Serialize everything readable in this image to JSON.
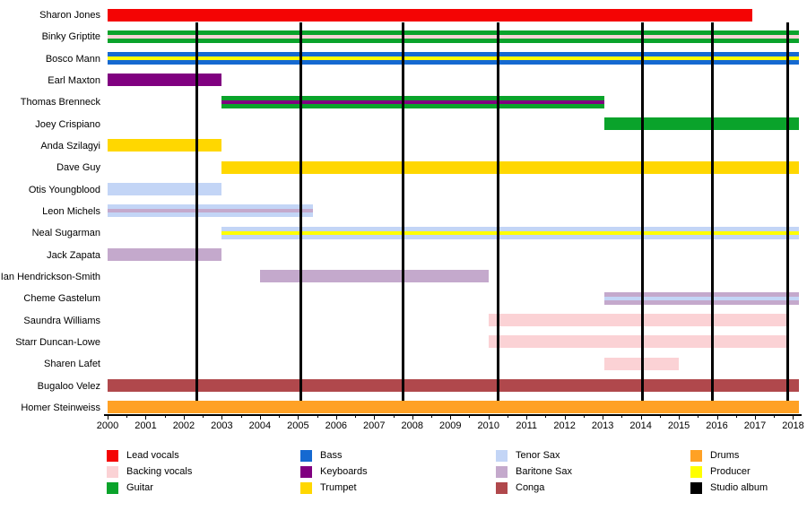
{
  "chart_data": {
    "type": "bar",
    "variant": "band-member-timeline-gantt",
    "title": "",
    "xlabel": "",
    "ylabel": "",
    "x_axis": {
      "min": 2000,
      "max": 2018,
      "major_tick_step": 1,
      "minor_tick_step": 0.5,
      "tick_labels": [
        "2000",
        "2001",
        "2002",
        "2003",
        "2004",
        "2005",
        "2006",
        "2007",
        "2008",
        "2009",
        "2010",
        "2011",
        "2012",
        "2013",
        "2014",
        "2015",
        "2016",
        "2017",
        "2018"
      ]
    },
    "roles": {
      "Lead vocals": "#f40404",
      "Backing vocals": "#fbd2d5",
      "Guitar": "#0aa32b",
      "Bass": "#1569d1",
      "Keyboards": "#800080",
      "Trumpet": "#ffd700",
      "Tenor Sax": "#c3d5f6",
      "Baritone Sax": "#c4a9cc",
      "Conga": "#b0484c",
      "Drums": "#ffa125",
      "Producer": "#ffff00",
      "Studio album": "#000000"
    },
    "members": [
      {
        "name": "Sharon Jones",
        "start": 2000,
        "end": 2016.92,
        "roles": [
          "Lead vocals"
        ]
      },
      {
        "name": "Binky Griptite",
        "start": 2000,
        "end": 2018.15,
        "roles": [
          "Guitar",
          "Backing vocals"
        ]
      },
      {
        "name": "Bosco Mann",
        "start": 2000,
        "end": 2018.15,
        "roles": [
          "Bass",
          "Producer"
        ]
      },
      {
        "name": "Earl Maxton",
        "start": 2000,
        "end": 2003,
        "roles": [
          "Keyboards"
        ]
      },
      {
        "name": "Thomas Brenneck",
        "start": 2003,
        "end": 2013.05,
        "roles": [
          "Guitar",
          "Keyboards"
        ]
      },
      {
        "name": "Joey Crispiano",
        "start": 2013.05,
        "end": 2018.15,
        "roles": [
          "Guitar"
        ]
      },
      {
        "name": "Anda Szilagyi",
        "start": 2000,
        "end": 2003,
        "roles": [
          "Trumpet"
        ]
      },
      {
        "name": "Dave Guy",
        "start": 2003,
        "end": 2018.15,
        "roles": [
          "Trumpet"
        ]
      },
      {
        "name": "Otis Youngblood",
        "start": 2000,
        "end": 2003,
        "roles": [
          "Tenor Sax"
        ]
      },
      {
        "name": "Leon Michels",
        "start": 2000,
        "end": 2005.4,
        "roles": [
          "Tenor Sax",
          "Baritone Sax"
        ]
      },
      {
        "name": "Neal Sugarman",
        "start": 2003,
        "end": 2018.15,
        "roles": [
          "Tenor Sax",
          "Producer"
        ]
      },
      {
        "name": "Jack Zapata",
        "start": 2000,
        "end": 2003,
        "roles": [
          "Baritone Sax"
        ]
      },
      {
        "name": "Ian Hendrickson-Smith",
        "start": 2004,
        "end": 2010,
        "roles": [
          "Baritone Sax"
        ]
      },
      {
        "name": "Cheme Gastelum",
        "start": 2013.05,
        "end": 2018.15,
        "roles": [
          "Baritone Sax",
          "Tenor Sax"
        ]
      },
      {
        "name": "Saundra Williams",
        "start": 2010,
        "end": 2017.9,
        "roles": [
          "Backing vocals"
        ]
      },
      {
        "name": "Starr Duncan-Lowe",
        "start": 2010,
        "end": 2017.9,
        "roles": [
          "Backing vocals"
        ]
      },
      {
        "name": "Sharen Lafet",
        "start": 2013.05,
        "end": 2015,
        "roles": [
          "Backing vocals"
        ]
      },
      {
        "name": "Bugaloo Velez",
        "start": 2000,
        "end": 2018.15,
        "roles": [
          "Conga"
        ]
      },
      {
        "name": "Homer Steinweiss",
        "start": 2000,
        "end": 2018.15,
        "roles": [
          "Drums"
        ]
      }
    ],
    "album_lines": {
      "label": "Studio album",
      "color": "#000000",
      "years": [
        2002.35,
        2005.08,
        2007.75,
        2010.26,
        2014.04,
        2015.87,
        2017.87
      ]
    },
    "legend": {
      "position": "bottom",
      "columns": [
        [
          "Lead vocals",
          "Backing vocals",
          "Guitar"
        ],
        [
          "Bass",
          "Keyboards",
          "Trumpet"
        ],
        [
          "Tenor Sax",
          "Baritone Sax",
          "Conga"
        ],
        [
          "Drums",
          "Producer",
          "Studio album"
        ]
      ]
    }
  }
}
